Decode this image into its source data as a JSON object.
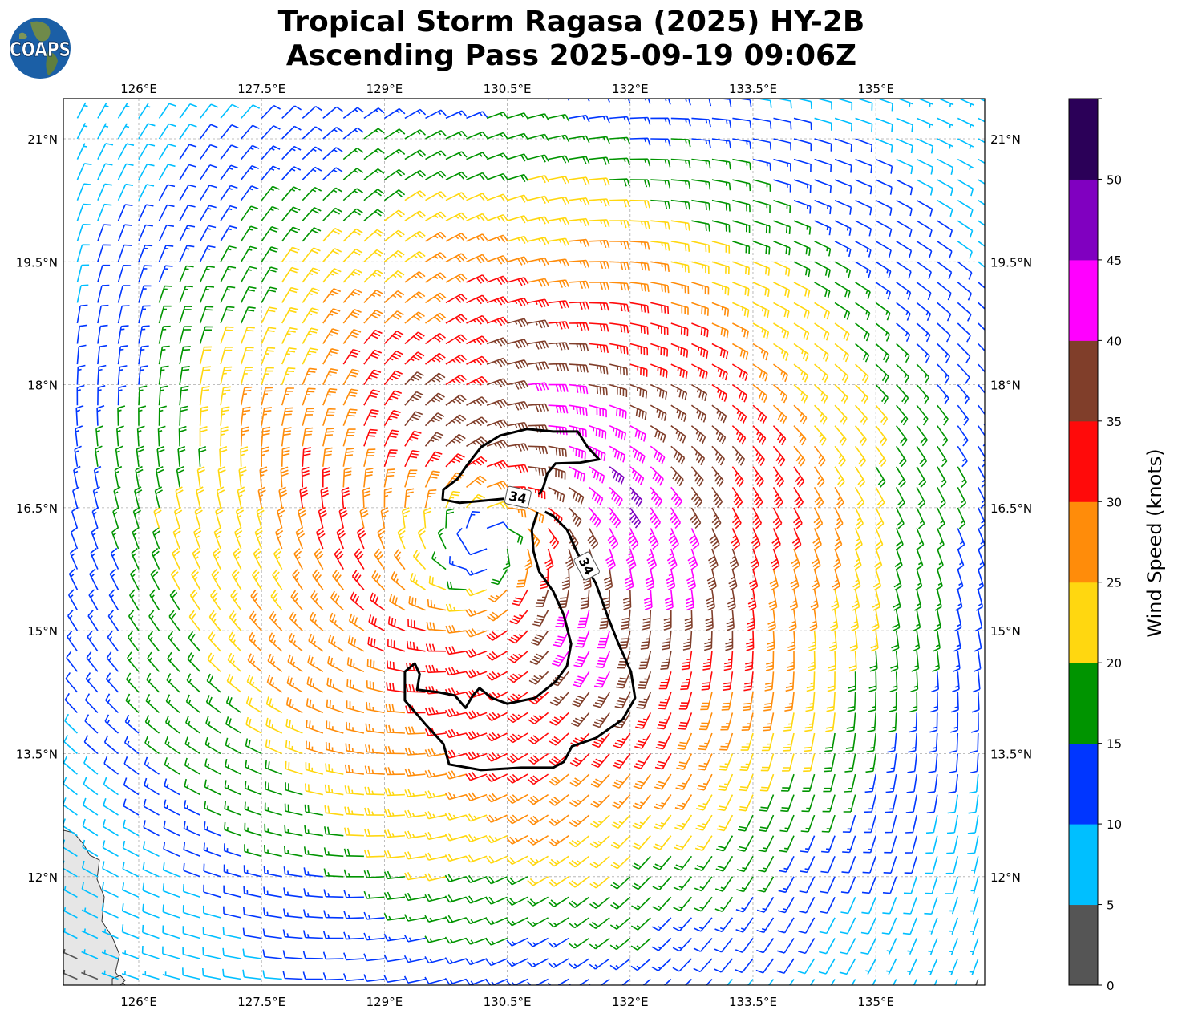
{
  "title": {
    "line1": "Tropical Storm Ragasa (2025) HY-2B",
    "line2": "Ascending Pass 2025-09-19 09:06Z"
  },
  "logo": {
    "text": "COAPS"
  },
  "map": {
    "lon_ticks": [
      126,
      127.5,
      129,
      130.5,
      132,
      133.5,
      135
    ],
    "lon_labels": [
      "126°E",
      "127.5°E",
      "129°E",
      "130.5°E",
      "132°E",
      "133.5°E",
      "135°E"
    ],
    "lat_ticks": [
      21,
      19.5,
      18,
      16.5,
      15,
      13.5,
      12
    ],
    "lat_labels": [
      "21°N",
      "19.5°N",
      "18°N",
      "16.5°N",
      "15°N",
      "13.5°N",
      "12°N"
    ],
    "extent": {
      "lon": [
        125.08,
        136.33
      ],
      "lat": [
        10.68,
        21.49
      ]
    }
  },
  "colorbar": {
    "label": "Wind Speed (knots)",
    "bounds": [
      0,
      5,
      10,
      15,
      20,
      25,
      30,
      35,
      40,
      45,
      50,
      55
    ],
    "ticks": [
      "0",
      "5",
      "10",
      "15",
      "20",
      "25",
      "30",
      "35",
      "40",
      "45",
      "50"
    ],
    "colors": [
      "#555555",
      "#00bfff",
      "#0036ff",
      "#009400",
      "#ffd710",
      "#ff8c0a",
      "#ff0a0a",
      "#803e2a",
      "#ff00ff",
      "#8000c0",
      "#2b0058"
    ]
  },
  "contour": {
    "level_label": "34",
    "upper_lobe": [
      [
        130.46,
        16.61
      ],
      [
        129.92,
        16.56
      ],
      [
        129.71,
        16.6
      ],
      [
        129.72,
        16.72
      ],
      [
        129.89,
        16.85
      ],
      [
        130.01,
        17.02
      ],
      [
        130.18,
        17.24
      ],
      [
        130.41,
        17.38
      ],
      [
        130.74,
        17.46
      ],
      [
        131.06,
        17.43
      ],
      [
        131.36,
        17.43
      ],
      [
        131.48,
        17.24
      ],
      [
        131.62,
        17.09
      ],
      [
        131.39,
        17.05
      ],
      [
        131.09,
        17.04
      ],
      [
        130.99,
        16.92
      ],
      [
        130.94,
        16.75
      ],
      [
        130.89,
        16.66
      ]
    ],
    "main": [
      [
        130.87,
        16.45
      ],
      [
        130.8,
        16.23
      ],
      [
        130.82,
        15.97
      ],
      [
        130.89,
        15.72
      ],
      [
        131.06,
        15.48
      ],
      [
        131.19,
        15.19
      ],
      [
        131.28,
        14.84
      ],
      [
        131.23,
        14.57
      ],
      [
        131.09,
        14.38
      ],
      [
        130.84,
        14.18
      ],
      [
        130.5,
        14.11
      ],
      [
        130.31,
        14.18
      ],
      [
        130.16,
        14.3
      ],
      [
        130.08,
        14.21
      ],
      [
        129.99,
        14.06
      ],
      [
        129.86,
        14.21
      ],
      [
        129.66,
        14.25
      ],
      [
        129.4,
        14.28
      ],
      [
        129.43,
        14.47
      ],
      [
        129.37,
        14.6
      ],
      [
        129.25,
        14.5
      ],
      [
        129.25,
        14.15
      ],
      [
        129.5,
        13.86
      ],
      [
        129.72,
        13.62
      ],
      [
        129.79,
        13.37
      ],
      [
        130.18,
        13.3
      ],
      [
        130.67,
        13.33
      ],
      [
        131.06,
        13.33
      ],
      [
        131.19,
        13.4
      ],
      [
        131.29,
        13.59
      ],
      [
        131.58,
        13.69
      ],
      [
        131.91,
        13.92
      ],
      [
        132.06,
        14.18
      ],
      [
        132.01,
        14.5
      ],
      [
        131.85,
        14.86
      ],
      [
        131.72,
        15.19
      ],
      [
        131.58,
        15.58
      ],
      [
        131.47,
        15.76
      ],
      [
        131.36,
        15.94
      ],
      [
        131.23,
        16.23
      ],
      [
        131.06,
        16.4
      ],
      [
        130.96,
        16.45
      ]
    ],
    "label_points": [
      [
        130.63,
        16.63
      ],
      [
        131.47,
        15.79
      ]
    ]
  },
  "wind_field_model": {
    "center": [
      130.25,
      16.05
    ],
    "vmax_kt": 36,
    "rmax_deg": 1.7,
    "inflow_deg": 20,
    "grid_step_deg": 0.25
  }
}
